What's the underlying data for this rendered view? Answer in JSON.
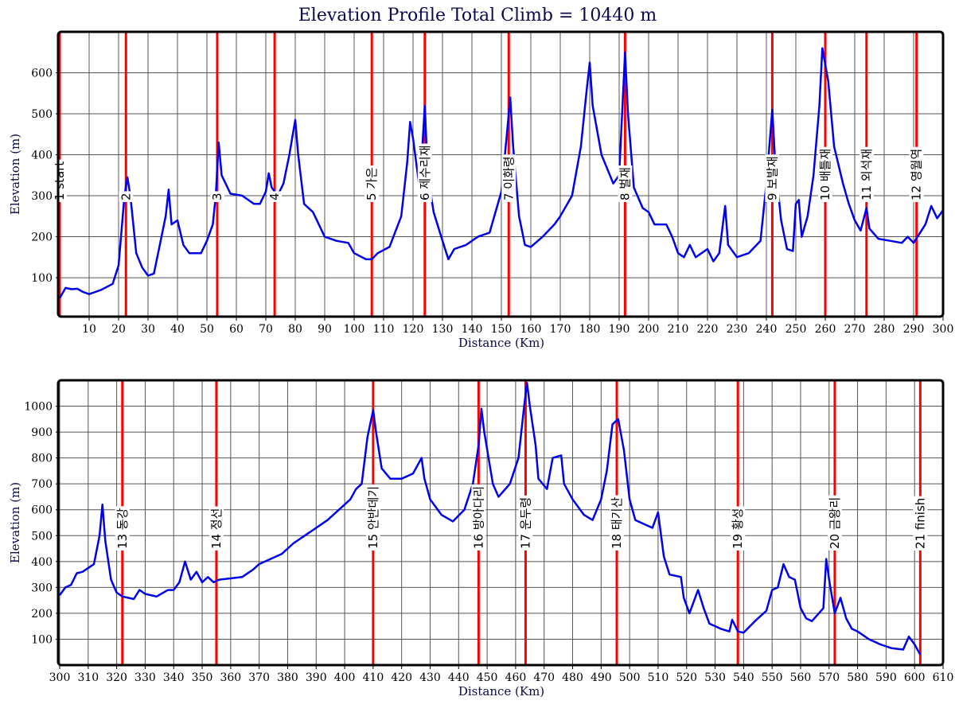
{
  "title": "Elevation Profile      Total Climb = 10440 m",
  "chart_data": [
    {
      "type": "line",
      "xlabel": "Distance (Km)",
      "ylabel": "Elevation (m)",
      "color": "#0000ee",
      "annotation_color": "#ff0000",
      "grid": true,
      "xlim": [
        0,
        300
      ],
      "ylim": [
        5,
        700
      ],
      "xticks": [
        10,
        20,
        30,
        40,
        50,
        60,
        70,
        80,
        90,
        100,
        110,
        120,
        130,
        140,
        150,
        160,
        170,
        180,
        190,
        200,
        210,
        220,
        230,
        240,
        250,
        260,
        270,
        280,
        290,
        300
      ],
      "yticks": [
        100,
        200,
        300,
        400,
        500,
        600
      ],
      "annotations": [
        {
          "x": 0,
          "text": "1 start"
        },
        {
          "x": 22.5,
          "text": "2"
        },
        {
          "x": 53.5,
          "text": "3"
        },
        {
          "x": 73,
          "text": "4"
        },
        {
          "x": 106,
          "text": "5 가은"
        },
        {
          "x": 124,
          "text": "6 제수리재"
        },
        {
          "x": 152.5,
          "text": "7 이화령"
        },
        {
          "x": 192,
          "text": "8 벌재"
        },
        {
          "x": 242,
          "text": "9 보발재"
        },
        {
          "x": 260,
          "text": "10 배틀재"
        },
        {
          "x": 274,
          "text": "11 외석재"
        },
        {
          "x": 291,
          "text": "12 영월역"
        }
      ],
      "x": [
        0,
        2,
        4,
        6,
        8,
        10,
        14,
        18,
        20,
        22,
        23,
        24,
        26,
        28,
        30,
        32,
        34,
        36,
        37,
        38,
        40,
        42,
        44,
        48,
        50,
        52,
        53,
        54,
        55,
        58,
        62,
        66,
        68,
        70,
        71,
        72,
        74,
        76,
        78,
        80,
        81,
        83,
        86,
        88,
        90,
        94,
        98,
        100,
        104,
        106,
        108,
        112,
        116,
        118,
        119,
        120,
        122,
        123,
        124,
        125,
        127,
        130,
        132,
        134,
        138,
        142,
        146,
        150,
        152,
        153,
        154,
        156,
        158,
        160,
        164,
        168,
        170,
        174,
        177,
        179,
        180,
        181,
        184,
        188,
        190,
        191,
        192,
        193,
        195,
        198,
        200,
        202,
        206,
        208,
        210,
        212,
        214,
        216,
        220,
        222,
        224,
        226,
        227,
        230,
        234,
        238,
        240,
        242,
        243,
        245,
        247,
        249,
        250,
        251,
        252,
        254,
        256,
        258,
        259,
        261,
        263,
        266,
        268,
        270,
        272,
        274,
        275,
        278,
        282,
        286,
        288,
        290,
        294,
        296,
        298,
        300
      ],
      "values": [
        50,
        75,
        72,
        73,
        65,
        60,
        70,
        85,
        130,
        300,
        345,
        300,
        160,
        125,
        105,
        110,
        180,
        250,
        315,
        230,
        240,
        180,
        160,
        160,
        190,
        230,
        300,
        430,
        350,
        305,
        300,
        280,
        280,
        310,
        355,
        320,
        300,
        330,
        400,
        485,
        400,
        280,
        260,
        230,
        200,
        190,
        185,
        160,
        145,
        145,
        160,
        175,
        250,
        380,
        480,
        440,
        330,
        400,
        520,
        350,
        260,
        190,
        145,
        170,
        180,
        200,
        210,
        310,
        460,
        540,
        420,
        250,
        180,
        175,
        200,
        230,
        250,
        300,
        420,
        560,
        625,
        520,
        400,
        330,
        350,
        500,
        650,
        500,
        320,
        270,
        260,
        230,
        230,
        200,
        160,
        150,
        180,
        150,
        170,
        140,
        160,
        275,
        180,
        150,
        160,
        190,
        330,
        510,
        380,
        240,
        170,
        165,
        280,
        290,
        200,
        250,
        350,
        520,
        660,
        580,
        420,
        330,
        280,
        240,
        215,
        270,
        220,
        195,
        190,
        185,
        200,
        185,
        230,
        275,
        245,
        265
      ]
    },
    {
      "type": "line",
      "xlabel": "Distance (Km)",
      "ylabel": "Elevation (m)",
      "color": "#0000ee",
      "annotation_color": "#ff0000",
      "grid": true,
      "xlim": [
        300,
        610
      ],
      "ylim": [
        0,
        1100
      ],
      "xticks": [
        300,
        310,
        320,
        330,
        340,
        350,
        360,
        370,
        380,
        390,
        400,
        410,
        420,
        430,
        440,
        450,
        460,
        470,
        480,
        490,
        500,
        510,
        520,
        530,
        540,
        550,
        560,
        570,
        580,
        590,
        600,
        610
      ],
      "yticks": [
        100,
        200,
        300,
        400,
        500,
        600,
        700,
        800,
        900,
        1000
      ],
      "annotations": [
        {
          "x": 322,
          "text": "13 동강"
        },
        {
          "x": 355,
          "text": "14 정선"
        },
        {
          "x": 410,
          "text": "15 안반데기"
        },
        {
          "x": 447,
          "text": "16 방아다리"
        },
        {
          "x": 463.5,
          "text": "17 운두령"
        },
        {
          "x": 495.5,
          "text": "18 태기산"
        },
        {
          "x": 538,
          "text": "19 황성"
        },
        {
          "x": 572,
          "text": "20 금왕리"
        },
        {
          "x": 602,
          "text": "21 finish"
        }
      ],
      "x": [
        300,
        302,
        304,
        306,
        308,
        312,
        314,
        315,
        316,
        318,
        320,
        322,
        324,
        326,
        328,
        330,
        334,
        338,
        340,
        342,
        344,
        346,
        348,
        350,
        352,
        354,
        356,
        360,
        364,
        368,
        370,
        374,
        378,
        382,
        386,
        390,
        394,
        398,
        402,
        404,
        406,
        408,
        410,
        411,
        413,
        416,
        420,
        424,
        427,
        428,
        430,
        434,
        438,
        442,
        445,
        447,
        448,
        449,
        452,
        454,
        458,
        461,
        463,
        464,
        465,
        467,
        468,
        471,
        473,
        476,
        477,
        480,
        484,
        487,
        490,
        492,
        494,
        496,
        498,
        500,
        502,
        506,
        508,
        510,
        512,
        514,
        518,
        519,
        521,
        523,
        524,
        526,
        528,
        532,
        535,
        536,
        538,
        540,
        544,
        548,
        550,
        552,
        554,
        556,
        558,
        560,
        562,
        564,
        568,
        569,
        570,
        572,
        574,
        576,
        578,
        580,
        584,
        588,
        592,
        596,
        598,
        600,
        602
      ],
      "values": [
        270,
        300,
        310,
        355,
        360,
        390,
        500,
        620,
        480,
        330,
        280,
        265,
        260,
        255,
        290,
        275,
        265,
        290,
        290,
        320,
        400,
        330,
        360,
        320,
        340,
        320,
        330,
        335,
        340,
        370,
        390,
        410,
        430,
        470,
        500,
        530,
        560,
        600,
        640,
        680,
        700,
        880,
        985,
        900,
        760,
        720,
        720,
        740,
        800,
        720,
        640,
        580,
        555,
        600,
        700,
        850,
        990,
        900,
        700,
        650,
        700,
        800,
        1000,
        1090,
        1000,
        850,
        720,
        680,
        800,
        810,
        700,
        640,
        580,
        560,
        640,
        750,
        930,
        950,
        830,
        640,
        560,
        540,
        530,
        590,
        420,
        350,
        340,
        260,
        200,
        260,
        290,
        220,
        160,
        140,
        130,
        175,
        130,
        125,
        170,
        210,
        290,
        300,
        390,
        340,
        330,
        220,
        180,
        170,
        220,
        410,
        330,
        200,
        260,
        180,
        140,
        130,
        100,
        80,
        65,
        60,
        110,
        80,
        40
      ]
    }
  ]
}
